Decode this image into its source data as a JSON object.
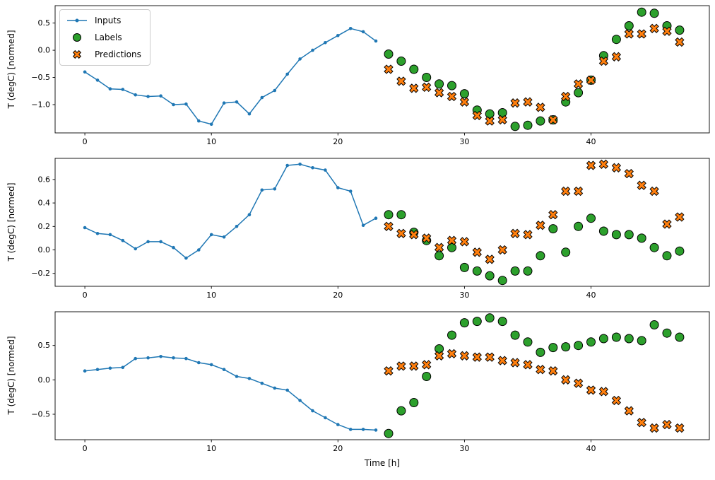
{
  "legend": {
    "items": [
      {
        "label": "Inputs"
      },
      {
        "label": "Labels"
      },
      {
        "label": "Predictions"
      }
    ]
  },
  "colors": {
    "inputs": "#1f77b4",
    "labels": "#2ca02c",
    "predictions": "#ff7f0e",
    "marker_edge": "#000000"
  },
  "chart_data": [
    {
      "type": "line",
      "ylabel": "T (degC) [normed]",
      "xlabel": "",
      "xlim": [
        -2.35,
        49.35
      ],
      "ylim": [
        -1.52,
        0.82
      ],
      "xticks": [
        0,
        10,
        20,
        30,
        40
      ],
      "yticks": [
        0.5,
        0.0,
        -0.5,
        -1.0
      ],
      "grid": false,
      "series": [
        {
          "name": "Inputs",
          "type": "line",
          "x": [
            0,
            1,
            2,
            3,
            4,
            5,
            6,
            7,
            8,
            9,
            10,
            11,
            12,
            13,
            14,
            15,
            16,
            17,
            18,
            19,
            20,
            21,
            22,
            23
          ],
          "y": [
            -0.4,
            -0.55,
            -0.71,
            -0.72,
            -0.82,
            -0.85,
            -0.84,
            -1.0,
            -0.99,
            -1.3,
            -1.36,
            -0.97,
            -0.95,
            -1.17,
            -0.87,
            -0.74,
            -0.44,
            -0.16,
            0.0,
            0.14,
            0.27,
            0.4,
            0.34,
            0.17
          ]
        },
        {
          "name": "Labels",
          "type": "circle",
          "x": [
            24,
            25,
            26,
            27,
            28,
            29,
            30,
            31,
            32,
            33,
            34,
            35,
            36,
            37,
            38,
            39,
            40,
            41,
            42,
            43,
            44,
            45,
            46,
            47
          ],
          "y": [
            -0.07,
            -0.2,
            -0.35,
            -0.5,
            -0.62,
            -0.65,
            -0.8,
            -1.1,
            -1.17,
            -1.15,
            -1.4,
            -1.38,
            -1.3,
            -1.28,
            -0.95,
            -0.78,
            -0.55,
            -0.1,
            0.2,
            0.45,
            0.7,
            0.68,
            0.45,
            0.37
          ]
        },
        {
          "name": "Predictions",
          "type": "x",
          "x": [
            24,
            25,
            26,
            27,
            28,
            29,
            30,
            31,
            32,
            33,
            34,
            35,
            36,
            37,
            38,
            39,
            40,
            41,
            42,
            43,
            44,
            45,
            46,
            47
          ],
          "y": [
            -0.35,
            -0.57,
            -0.7,
            -0.68,
            -0.78,
            -0.85,
            -0.95,
            -1.2,
            -1.3,
            -1.28,
            -0.97,
            -0.95,
            -1.05,
            -1.28,
            -0.85,
            -0.62,
            -0.55,
            -0.2,
            -0.12,
            0.3,
            0.3,
            0.4,
            0.35,
            0.15
          ]
        }
      ]
    },
    {
      "type": "line",
      "ylabel": "T (degC) [normed]",
      "xlabel": "",
      "xlim": [
        -2.35,
        49.35
      ],
      "ylim": [
        -0.31,
        0.78
      ],
      "xticks": [
        0,
        10,
        20,
        30,
        40
      ],
      "yticks": [
        0.6,
        0.4,
        0.2,
        0.0,
        -0.2
      ],
      "grid": false,
      "series": [
        {
          "name": "Inputs",
          "type": "line",
          "x": [
            0,
            1,
            2,
            3,
            4,
            5,
            6,
            7,
            8,
            9,
            10,
            11,
            12,
            13,
            14,
            15,
            16,
            17,
            18,
            19,
            20,
            21,
            22,
            23
          ],
          "y": [
            0.19,
            0.14,
            0.13,
            0.08,
            0.01,
            0.07,
            0.07,
            0.02,
            -0.07,
            0.0,
            0.13,
            0.11,
            0.2,
            0.3,
            0.51,
            0.52,
            0.72,
            0.73,
            0.7,
            0.68,
            0.53,
            0.5,
            0.21,
            0.27
          ]
        },
        {
          "name": "Labels",
          "type": "circle",
          "x": [
            24,
            25,
            26,
            27,
            28,
            29,
            30,
            31,
            32,
            33,
            34,
            35,
            36,
            37,
            38,
            39,
            40,
            41,
            42,
            43,
            44,
            45,
            46,
            47
          ],
          "y": [
            0.3,
            0.3,
            0.15,
            0.08,
            -0.05,
            0.02,
            -0.15,
            -0.18,
            -0.22,
            -0.26,
            -0.18,
            -0.18,
            -0.05,
            0.18,
            -0.02,
            0.2,
            0.27,
            0.16,
            0.13,
            0.13,
            0.1,
            0.02,
            -0.05,
            -0.01
          ]
        },
        {
          "name": "Predictions",
          "type": "x",
          "x": [
            24,
            25,
            26,
            27,
            28,
            29,
            30,
            31,
            32,
            33,
            34,
            35,
            36,
            37,
            38,
            39,
            40,
            41,
            42,
            43,
            44,
            45,
            46,
            47
          ],
          "y": [
            0.2,
            0.14,
            0.13,
            0.1,
            0.02,
            0.08,
            0.07,
            -0.02,
            -0.08,
            0.0,
            0.14,
            0.13,
            0.21,
            0.3,
            0.5,
            0.5,
            0.72,
            0.73,
            0.7,
            0.65,
            0.55,
            0.5,
            0.22,
            0.28
          ]
        }
      ]
    },
    {
      "type": "line",
      "ylabel": "T (degC) [normed]",
      "xlabel": "Time [h]",
      "xlim": [
        -2.35,
        49.35
      ],
      "ylim": [
        -0.87,
        0.99
      ],
      "xticks": [
        0,
        10,
        20,
        30,
        40
      ],
      "yticks": [
        0.5,
        0.0,
        -0.5
      ],
      "grid": false,
      "series": [
        {
          "name": "Inputs",
          "type": "line",
          "x": [
            0,
            1,
            2,
            3,
            4,
            5,
            6,
            7,
            8,
            9,
            10,
            11,
            12,
            13,
            14,
            15,
            16,
            17,
            18,
            19,
            20,
            21,
            22,
            23
          ],
          "y": [
            0.13,
            0.15,
            0.17,
            0.18,
            0.31,
            0.32,
            0.34,
            0.32,
            0.31,
            0.25,
            0.22,
            0.15,
            0.05,
            0.02,
            -0.05,
            -0.12,
            -0.15,
            -0.3,
            -0.45,
            -0.55,
            -0.65,
            -0.72,
            -0.72,
            -0.73
          ]
        },
        {
          "name": "Labels",
          "type": "circle",
          "x": [
            24,
            25,
            26,
            27,
            28,
            29,
            30,
            31,
            32,
            33,
            34,
            35,
            36,
            37,
            38,
            39,
            40,
            41,
            42,
            43,
            44,
            45,
            46,
            47
          ],
          "y": [
            -0.78,
            -0.45,
            -0.33,
            0.05,
            0.45,
            0.65,
            0.83,
            0.85,
            0.9,
            0.85,
            0.65,
            0.55,
            0.4,
            0.47,
            0.48,
            0.5,
            0.55,
            0.6,
            0.62,
            0.6,
            0.57,
            0.8,
            0.68,
            0.62
          ]
        },
        {
          "name": "Predictions",
          "type": "x",
          "x": [
            24,
            25,
            26,
            27,
            28,
            29,
            30,
            31,
            32,
            33,
            34,
            35,
            36,
            37,
            38,
            39,
            40,
            41,
            42,
            43,
            44,
            45,
            46,
            47
          ],
          "y": [
            0.13,
            0.2,
            0.2,
            0.22,
            0.35,
            0.38,
            0.35,
            0.33,
            0.33,
            0.28,
            0.25,
            0.22,
            0.15,
            0.13,
            0.0,
            -0.05,
            -0.15,
            -0.17,
            -0.3,
            -0.45,
            -0.62,
            -0.7,
            -0.65,
            -0.7
          ]
        }
      ]
    }
  ]
}
